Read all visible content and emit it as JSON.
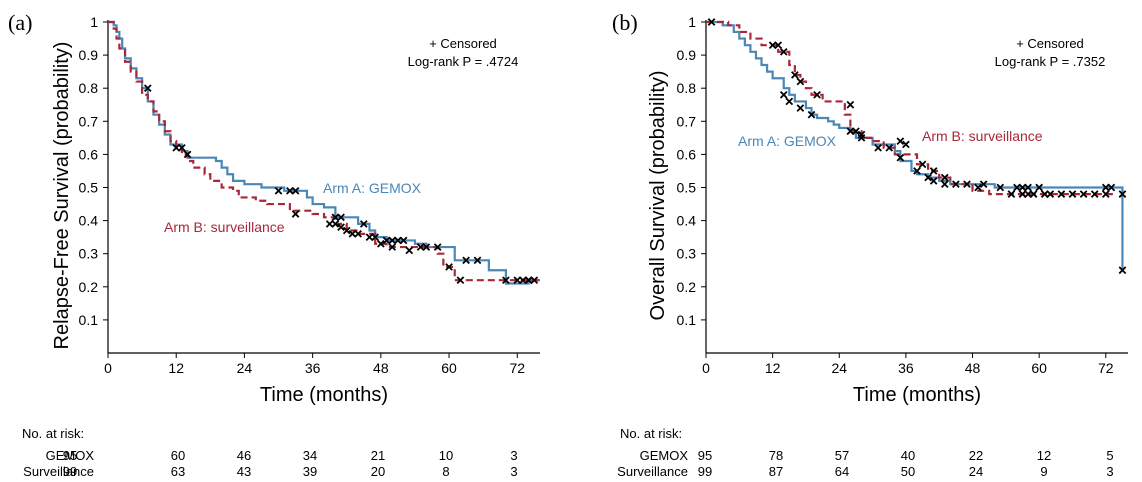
{
  "colors": {
    "gemox": "#4a86b6",
    "surveillance": "#a8283a",
    "censor": "#000000",
    "axis": "#000000"
  },
  "panels": [
    {
      "id": "a",
      "letter": "(a)",
      "annotation_line1": "+ Censored",
      "annotation_line2": "Log-rank P = .4724",
      "risk_header": "No. at risk:",
      "risk_rows": [
        {
          "label": "GEMOX",
          "values": [
            "95",
            "60",
            "46",
            "34",
            "21",
            "10",
            "3"
          ]
        },
        {
          "label": "Surveillance",
          "values": [
            "99",
            "63",
            "43",
            "39",
            "20",
            "8",
            "3"
          ]
        }
      ],
      "chart_data": {
        "type": "line",
        "ylabel": "Relapse-Free Survival (probability)",
        "xlabel": "Time (months)",
        "xlim": [
          0,
          76
        ],
        "ylim": [
          0,
          1
        ],
        "xticks": [
          0,
          12,
          24,
          36,
          48,
          60,
          72
        ],
        "yticks": [
          0.1,
          0.2,
          0.3,
          0.4,
          0.5,
          0.6,
          0.7,
          0.8,
          0.9,
          1
        ],
        "series": [
          {
            "name": "Arm A: GEMOX",
            "style": "solid",
            "steps": [
              [
                0,
                1
              ],
              [
                1,
                0.99
              ],
              [
                1.5,
                0.97
              ],
              [
                2,
                0.95
              ],
              [
                2.5,
                0.92
              ],
              [
                3,
                0.89
              ],
              [
                4,
                0.86
              ],
              [
                5,
                0.83
              ],
              [
                6,
                0.8
              ],
              [
                7,
                0.76
              ],
              [
                8,
                0.72
              ],
              [
                9,
                0.69
              ],
              [
                10,
                0.66
              ],
              [
                11,
                0.63
              ],
              [
                13,
                0.61
              ],
              [
                14,
                0.59
              ],
              [
                19,
                0.58
              ],
              [
                20,
                0.56
              ],
              [
                21,
                0.54
              ],
              [
                22,
                0.52
              ],
              [
                24,
                0.51
              ],
              [
                27,
                0.5
              ],
              [
                31,
                0.49
              ],
              [
                35,
                0.47
              ],
              [
                36,
                0.45
              ],
              [
                38,
                0.44
              ],
              [
                40,
                0.41
              ],
              [
                44,
                0.39
              ],
              [
                46,
                0.37
              ],
              [
                47,
                0.35
              ],
              [
                49,
                0.34
              ],
              [
                54,
                0.33
              ],
              [
                56,
                0.32
              ],
              [
                61,
                0.28
              ],
              [
                67,
                0.25
              ],
              [
                70,
                0.21
              ],
              [
                74,
                0.22
              ],
              [
                76,
                0.22
              ]
            ],
            "censored": [
              [
                30,
                0.49
              ],
              [
                32,
                0.49
              ],
              [
                33,
                0.49
              ],
              [
                40,
                0.41
              ],
              [
                41,
                0.41
              ],
              [
                45,
                0.39
              ],
              [
                47,
                0.35
              ],
              [
                49,
                0.34
              ],
              [
                50,
                0.34
              ],
              [
                51,
                0.34
              ],
              [
                52,
                0.34
              ],
              [
                55,
                0.32
              ],
              [
                56,
                0.32
              ],
              [
                58,
                0.32
              ],
              [
                63,
                0.28
              ],
              [
                65,
                0.28
              ],
              [
                72,
                0.22
              ],
              [
                73,
                0.22
              ],
              [
                74,
                0.22
              ],
              [
                75,
                0.22
              ]
            ]
          },
          {
            "name": "Arm B: surveillance",
            "style": "dashed",
            "steps": [
              [
                0,
                1
              ],
              [
                1,
                0.98
              ],
              [
                1.5,
                0.95
              ],
              [
                2,
                0.92
              ],
              [
                3,
                0.88
              ],
              [
                4,
                0.85
              ],
              [
                5,
                0.82
              ],
              [
                6,
                0.78
              ],
              [
                7,
                0.76
              ],
              [
                8,
                0.73
              ],
              [
                9,
                0.7
              ],
              [
                10,
                0.67
              ],
              [
                11,
                0.64
              ],
              [
                12,
                0.62
              ],
              [
                13,
                0.6
              ],
              [
                14,
                0.58
              ],
              [
                15,
                0.56
              ],
              [
                17,
                0.54
              ],
              [
                18,
                0.52
              ],
              [
                20,
                0.5
              ],
              [
                22,
                0.49
              ],
              [
                23,
                0.47
              ],
              [
                26,
                0.46
              ],
              [
                28,
                0.45
              ],
              [
                32,
                0.43
              ],
              [
                36,
                0.42
              ],
              [
                38,
                0.41
              ],
              [
                40,
                0.39
              ],
              [
                42,
                0.37
              ],
              [
                44,
                0.36
              ],
              [
                47,
                0.33
              ],
              [
                49,
                0.32
              ],
              [
                58,
                0.3
              ],
              [
                59,
                0.26
              ],
              [
                61,
                0.22
              ],
              [
                68,
                0.22
              ],
              [
                76,
                0.22
              ]
            ],
            "censored": [
              [
                7,
                0.8
              ],
              [
                12,
                0.62
              ],
              [
                13,
                0.62
              ],
              [
                14,
                0.6
              ],
              [
                33,
                0.42
              ],
              [
                39,
                0.39
              ],
              [
                40,
                0.39
              ],
              [
                41,
                0.38
              ],
              [
                42,
                0.37
              ],
              [
                43,
                0.36
              ],
              [
                44,
                0.36
              ],
              [
                46,
                0.35
              ],
              [
                48,
                0.33
              ],
              [
                50,
                0.32
              ],
              [
                53,
                0.31
              ],
              [
                60,
                0.26
              ],
              [
                62,
                0.22
              ],
              [
                70,
                0.22
              ],
              [
                74,
                0.22
              ]
            ]
          }
        ]
      }
    },
    {
      "id": "b",
      "letter": "(b)",
      "annotation_line1": "+ Censored",
      "annotation_line2": "Log-rank P = .7352",
      "risk_header": "No. at risk:",
      "risk_rows": [
        {
          "label": "GEMOX",
          "values": [
            "95",
            "78",
            "57",
            "40",
            "22",
            "12",
            "5"
          ]
        },
        {
          "label": "Surveillance",
          "values": [
            "99",
            "87",
            "64",
            "50",
            "24",
            "9",
            "3"
          ]
        }
      ],
      "chart_data": {
        "type": "line",
        "ylabel": "Overall Survival (probability)",
        "xlabel": "Time (months)",
        "xlim": [
          0,
          76
        ],
        "ylim": [
          0,
          1
        ],
        "xticks": [
          0,
          12,
          24,
          36,
          48,
          60,
          72
        ],
        "yticks": [
          0.1,
          0.2,
          0.3,
          0.4,
          0.5,
          0.6,
          0.7,
          0.8,
          0.9,
          1
        ],
        "series": [
          {
            "name": "Arm A: GEMOX",
            "style": "solid",
            "steps": [
              [
                0,
                1
              ],
              [
                3,
                0.99
              ],
              [
                5,
                0.97
              ],
              [
                6,
                0.95
              ],
              [
                7,
                0.93
              ],
              [
                8,
                0.91
              ],
              [
                9,
                0.89
              ],
              [
                10,
                0.87
              ],
              [
                11,
                0.85
              ],
              [
                12,
                0.83
              ],
              [
                14,
                0.8
              ],
              [
                15,
                0.78
              ],
              [
                16,
                0.76
              ],
              [
                18,
                0.74
              ],
              [
                19,
                0.72
              ],
              [
                20,
                0.71
              ],
              [
                22,
                0.7
              ],
              [
                23,
                0.69
              ],
              [
                24,
                0.68
              ],
              [
                26,
                0.67
              ],
              [
                27,
                0.65
              ],
              [
                30,
                0.63
              ],
              [
                34,
                0.61
              ],
              [
                35,
                0.58
              ],
              [
                37,
                0.55
              ],
              [
                38,
                0.54
              ],
              [
                40,
                0.53
              ],
              [
                42,
                0.52
              ],
              [
                44,
                0.51
              ],
              [
                48,
                0.51
              ],
              [
                52,
                0.5
              ],
              [
                74,
                0.5
              ],
              [
                75,
                0.25
              ]
            ],
            "censored": [
              [
                1,
                1
              ],
              [
                14,
                0.78
              ],
              [
                15,
                0.76
              ],
              [
                17,
                0.74
              ],
              [
                19,
                0.72
              ],
              [
                26,
                0.67
              ],
              [
                28,
                0.65
              ],
              [
                31,
                0.62
              ],
              [
                33,
                0.62
              ],
              [
                35,
                0.59
              ],
              [
                38,
                0.55
              ],
              [
                40,
                0.53
              ],
              [
                41,
                0.52
              ],
              [
                43,
                0.51
              ],
              [
                45,
                0.51
              ],
              [
                50,
                0.51
              ],
              [
                53,
                0.5
              ],
              [
                56,
                0.5
              ],
              [
                57,
                0.5
              ],
              [
                58,
                0.5
              ],
              [
                60,
                0.5
              ],
              [
                72,
                0.5
              ],
              [
                73,
                0.5
              ],
              [
                75,
                0.48
              ],
              [
                75,
                0.25
              ]
            ]
          },
          {
            "name": "Arm B: surveillance",
            "style": "dashed",
            "steps": [
              [
                0,
                1
              ],
              [
                4,
                0.99
              ],
              [
                6,
                0.97
              ],
              [
                8,
                0.95
              ],
              [
                10,
                0.93
              ],
              [
                13,
                0.91
              ],
              [
                15,
                0.87
              ],
              [
                16,
                0.84
              ],
              [
                17,
                0.82
              ],
              [
                18,
                0.8
              ],
              [
                19,
                0.78
              ],
              [
                21,
                0.76
              ],
              [
                25,
                0.72
              ],
              [
                26,
                0.67
              ],
              [
                28,
                0.65
              ],
              [
                30,
                0.64
              ],
              [
                32,
                0.62
              ],
              [
                34,
                0.6
              ],
              [
                36,
                0.6
              ],
              [
                38,
                0.57
              ],
              [
                40,
                0.55
              ],
              [
                42,
                0.53
              ],
              [
                44,
                0.51
              ],
              [
                48,
                0.49
              ],
              [
                51,
                0.48
              ],
              [
                74,
                0.48
              ]
            ],
            "censored": [
              [
                12,
                0.93
              ],
              [
                13,
                0.93
              ],
              [
                14,
                0.91
              ],
              [
                16,
                0.84
              ],
              [
                17,
                0.82
              ],
              [
                20,
                0.78
              ],
              [
                26,
                0.75
              ],
              [
                27,
                0.67
              ],
              [
                28,
                0.66
              ],
              [
                35,
                0.64
              ],
              [
                36,
                0.63
              ],
              [
                39,
                0.57
              ],
              [
                41,
                0.55
              ],
              [
                43,
                0.53
              ],
              [
                47,
                0.51
              ],
              [
                49,
                0.5
              ],
              [
                55,
                0.48
              ],
              [
                57,
                0.48
              ],
              [
                58,
                0.48
              ],
              [
                59,
                0.48
              ],
              [
                61,
                0.48
              ],
              [
                62,
                0.48
              ],
              [
                64,
                0.48
              ],
              [
                66,
                0.48
              ],
              [
                68,
                0.48
              ],
              [
                70,
                0.48
              ],
              [
                72,
                0.48
              ]
            ]
          }
        ]
      }
    }
  ]
}
